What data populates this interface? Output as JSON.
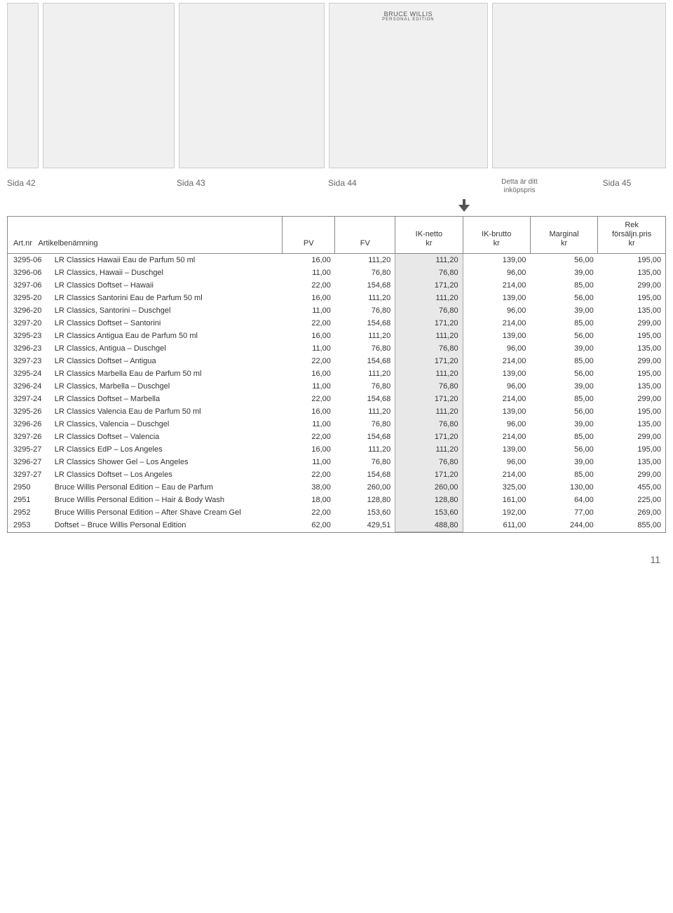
{
  "captions": {
    "sida42": "Sida 42",
    "sida43": "Sida 43",
    "sida44": "Sida 44",
    "note_line1": "Detta är ditt",
    "note_line2": "inköpspris",
    "sida45": "Sida 45"
  },
  "brand_label": "BRUCE WILLIS",
  "brand_sub": "PERSONAL EDITION",
  "headers": {
    "artnr": "Art.nr",
    "artname": "Artikelbenämning",
    "pv": "PV",
    "fv": "FV",
    "iknetto_l1": "IK-netto",
    "iknetto_l2": "kr",
    "ikbrutto_l1": "IK-brutto",
    "ikbrutto_l2": "kr",
    "marg_l1": "Marginal",
    "marg_l2": "kr",
    "rek_l1": "Rek",
    "rek_l2": "försäljn.pris",
    "rek_l3": "kr"
  },
  "highlight_bg": "#e8e8e8",
  "rows": [
    {
      "art": "3295-06",
      "name": "LR Classics Hawaii Eau de Parfum 50 ml",
      "pv": "16,00",
      "fv": "111,20",
      "iknet": "111,20",
      "ikbr": "139,00",
      "marg": "56,00",
      "rek": "195,00"
    },
    {
      "art": "3296-06",
      "name": "LR Classics, Hawaii – Duschgel",
      "pv": "11,00",
      "fv": "76,80",
      "iknet": "76,80",
      "ikbr": "96,00",
      "marg": "39,00",
      "rek": "135,00"
    },
    {
      "art": "3297-06",
      "name": "LR Classics Doftset – Hawaii",
      "pv": "22,00",
      "fv": "154,68",
      "iknet": "171,20",
      "ikbr": "214,00",
      "marg": "85,00",
      "rek": "299,00"
    },
    {
      "art": "3295-20",
      "name": "LR Classics Santorini Eau de Parfum 50 ml",
      "pv": "16,00",
      "fv": "111,20",
      "iknet": "111,20",
      "ikbr": "139,00",
      "marg": "56,00",
      "rek": "195,00"
    },
    {
      "art": "3296-20",
      "name": "LR Classics, Santorini – Duschgel",
      "pv": "11,00",
      "fv": "76,80",
      "iknet": "76,80",
      "ikbr": "96,00",
      "marg": "39,00",
      "rek": "135,00"
    },
    {
      "art": "3297-20",
      "name": "LR Classics Doftset – Santorini",
      "pv": "22,00",
      "fv": "154,68",
      "iknet": "171,20",
      "ikbr": "214,00",
      "marg": "85,00",
      "rek": "299,00"
    },
    {
      "art": "3295-23",
      "name": "LR Classics Antigua Eau de Parfum 50 ml",
      "pv": "16,00",
      "fv": "111,20",
      "iknet": "111,20",
      "ikbr": "139,00",
      "marg": "56,00",
      "rek": "195,00"
    },
    {
      "art": "3296-23",
      "name": "LR Classics, Antigua – Duschgel",
      "pv": "11,00",
      "fv": "76,80",
      "iknet": "76,80",
      "ikbr": "96,00",
      "marg": "39,00",
      "rek": "135,00"
    },
    {
      "art": "3297-23",
      "name": "LR Classics Doftset – Antigua",
      "pv": "22,00",
      "fv": "154,68",
      "iknet": "171,20",
      "ikbr": "214,00",
      "marg": "85,00",
      "rek": "299,00"
    },
    {
      "art": "3295-24",
      "name": "LR Classics Marbella Eau de Parfum 50 ml",
      "pv": "16,00",
      "fv": "111,20",
      "iknet": "111,20",
      "ikbr": "139,00",
      "marg": "56,00",
      "rek": "195,00"
    },
    {
      "art": "3296-24",
      "name": "LR Classics, Marbella – Duschgel",
      "pv": "11,00",
      "fv": "76,80",
      "iknet": "76,80",
      "ikbr": "96,00",
      "marg": "39,00",
      "rek": "135,00"
    },
    {
      "art": "3297-24",
      "name": "LR Classics Doftset – Marbella",
      "pv": "22,00",
      "fv": "154,68",
      "iknet": "171,20",
      "ikbr": "214,00",
      "marg": "85,00",
      "rek": "299,00"
    },
    {
      "art": "3295-26",
      "name": "LR Classics Valencia Eau de Parfum 50 ml",
      "pv": "16,00",
      "fv": "111,20",
      "iknet": "111,20",
      "ikbr": "139,00",
      "marg": "56,00",
      "rek": "195,00"
    },
    {
      "art": "3296-26",
      "name": "LR Classics, Valencia – Duschgel",
      "pv": "11,00",
      "fv": "76,80",
      "iknet": "76,80",
      "ikbr": "96,00",
      "marg": "39,00",
      "rek": "135,00"
    },
    {
      "art": "3297-26",
      "name": "LR Classics Doftset – Valencia",
      "pv": "22,00",
      "fv": "154,68",
      "iknet": "171,20",
      "ikbr": "214,00",
      "marg": "85,00",
      "rek": "299,00"
    },
    {
      "art": "3295-27",
      "name": "LR Classics EdP – Los Angeles",
      "pv": "16,00",
      "fv": "111,20",
      "iknet": "111,20",
      "ikbr": "139,00",
      "marg": "56,00",
      "rek": "195,00"
    },
    {
      "art": "3296-27",
      "name": "LR Classics Shower Gel – Los Angeles",
      "pv": "11,00",
      "fv": "76,80",
      "iknet": "76,80",
      "ikbr": "96,00",
      "marg": "39,00",
      "rek": "135,00"
    },
    {
      "art": "3297-27",
      "name": "LR Classics Doftset – Los Angeles",
      "pv": "22,00",
      "fv": "154,68",
      "iknet": "171,20",
      "ikbr": "214,00",
      "marg": "85,00",
      "rek": "299,00"
    },
    {
      "art": "2950",
      "name": "Bruce Willis Personal Edition – Eau de Parfum",
      "pv": "38,00",
      "fv": "260,00",
      "iknet": "260,00",
      "ikbr": "325,00",
      "marg": "130,00",
      "rek": "455,00"
    },
    {
      "art": "2951",
      "name": "Bruce Willis Personal Edition – Hair & Body Wash",
      "pv": "18,00",
      "fv": "128,80",
      "iknet": "128,80",
      "ikbr": "161,00",
      "marg": "64,00",
      "rek": "225,00"
    },
    {
      "art": "2952",
      "name": "Bruce Willis Personal Edition – After Shave Cream Gel",
      "pv": "22,00",
      "fv": "153,60",
      "iknet": "153,60",
      "ikbr": "192,00",
      "marg": "77,00",
      "rek": "269,00"
    },
    {
      "art": "2953",
      "name": "Doftset – Bruce Willis Personal Edition",
      "pv": "62,00",
      "fv": "429,51",
      "iknet": "488,80",
      "ikbr": "611,00",
      "marg": "244,00",
      "rek": "855,00"
    }
  ],
  "page_number": "11"
}
